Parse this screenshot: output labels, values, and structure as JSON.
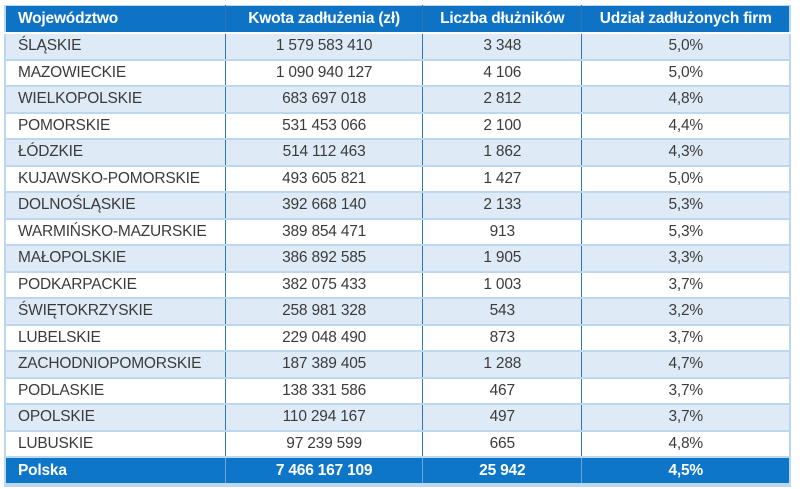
{
  "chart_data": {
    "type": "table",
    "columns": [
      "Województwo",
      "Kwota zadłużenia (zł)",
      "Liczba dłużników",
      "Udział zadłużonych firm"
    ],
    "rows": [
      [
        "ŚLĄSKIE",
        "1 579 583 410",
        "3 348",
        "5,0%"
      ],
      [
        "MAZOWIECKIE",
        "1 090 940 127",
        "4 106",
        "5,0%"
      ],
      [
        "WIELKOPOLSKIE",
        "683 697 018",
        "2 812",
        "4,8%"
      ],
      [
        "POMORSKIE",
        "531 453 066",
        "2 100",
        "4,4%"
      ],
      [
        "ŁÓDZKIE",
        "514 112 463",
        "1 862",
        "4,3%"
      ],
      [
        "KUJAWSKO-POMORSKIE",
        "493 605 821",
        "1 427",
        "5,0%"
      ],
      [
        "DOLNOŚLĄSKIE",
        "392 668 140",
        "2 133",
        "5,3%"
      ],
      [
        "WARMIŃSKO-MAZURSKIE",
        "389 854 471",
        "913",
        "5,3%"
      ],
      [
        "MAŁOPOLSKIE",
        "386 892 585",
        "1 905",
        "3,3%"
      ],
      [
        "PODKARPACKIE",
        "382 075 433",
        "1 003",
        "3,7%"
      ],
      [
        "ŚWIĘTOKRZYSKIE",
        "258 981 328",
        "543",
        "3,2%"
      ],
      [
        "LUBELSKIE",
        "229 048 490",
        "873",
        "3,7%"
      ],
      [
        "ZACHODNIOPOMORSKIE",
        "187 389 405",
        "1 288",
        "4,7%"
      ],
      [
        "PODLASKIE",
        "138 331 586",
        "467",
        "3,7%"
      ],
      [
        "OPOLSKIE",
        "110 294 167",
        "497",
        "3,7%"
      ],
      [
        "LUBUSKIE",
        "97 239 599",
        "665",
        "4,8%"
      ]
    ],
    "footer": [
      "Polska",
      "7 466 167 109",
      "25 942",
      "4,5%"
    ],
    "layout_hints": {
      "striped": true,
      "stripe_pattern": "odd-rows-light-blue",
      "column_alignment": [
        "left",
        "center",
        "center",
        "center"
      ]
    },
    "colors": {
      "header_bg": "#0e73c5",
      "footer_bg": "#0e76c9",
      "header_text": "#ffffff",
      "row_alt": "#deebf7",
      "border_light": "#bdd7ee",
      "vline_header": "#2e75b6",
      "vline_body": "#2e75b6",
      "vline_footer": "#6ea7db",
      "body_text": "#3b3b3b"
    }
  }
}
